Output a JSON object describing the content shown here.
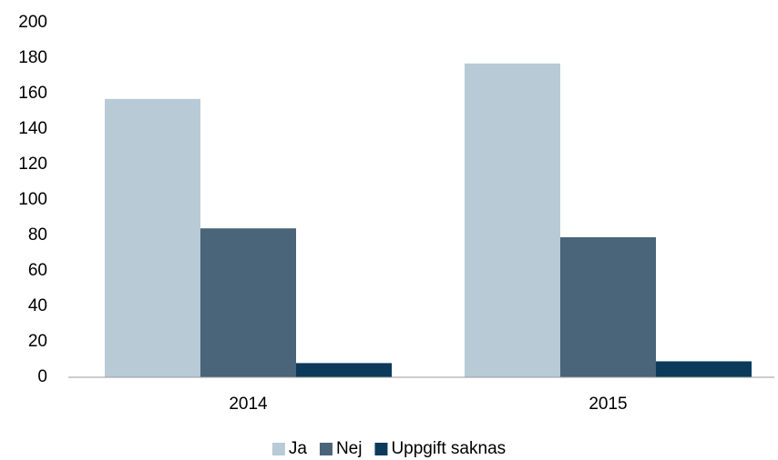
{
  "chart_data": {
    "type": "bar",
    "categories": [
      "2014",
      "2015"
    ],
    "series": [
      {
        "name": "Ja",
        "color": "#b7cad6",
        "values": [
          157,
          177
        ]
      },
      {
        "name": "Nej",
        "color": "#4a6479",
        "values": [
          84,
          79
        ]
      },
      {
        "name": "Uppgift saknas",
        "color": "#0b3a5b",
        "values": [
          8,
          9
        ]
      }
    ],
    "ylim": [
      0,
      200
    ],
    "yticks": [
      0,
      20,
      40,
      60,
      80,
      100,
      120,
      140,
      160,
      180,
      200
    ],
    "grid": false,
    "legend": "bottom"
  }
}
